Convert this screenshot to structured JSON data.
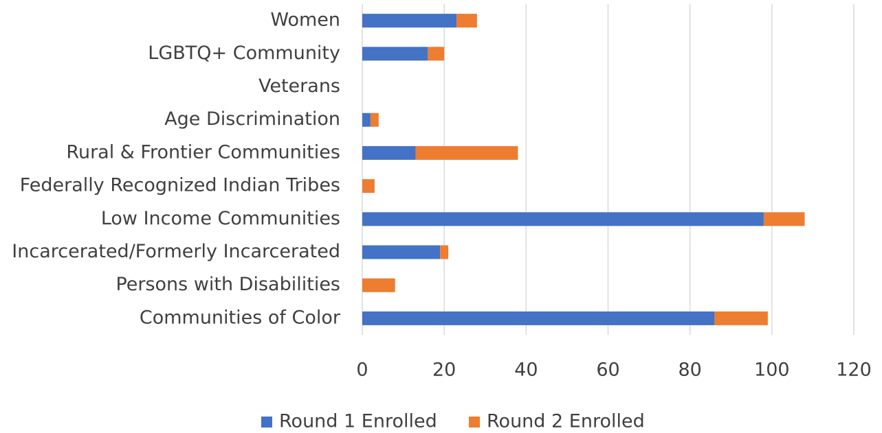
{
  "chart_data": {
    "type": "stacked_barh",
    "categories": [
      "Women",
      "LGBTQ+ Community",
      "Veterans",
      "Age Discrimination",
      "Rural & Frontier Communities",
      "Federally Recognized Indian Tribes",
      "Low Income Communities",
      "Incarcerated/Formerly Incarcerated",
      "Persons with Disabilities",
      "Communities of Color"
    ],
    "series": [
      {
        "name": "Round 1 Enrolled",
        "color": "#4472c4",
        "values": [
          23,
          16,
          0,
          2,
          13,
          0,
          98,
          19,
          0,
          86
        ]
      },
      {
        "name": "Round 2 Enrolled",
        "color": "#ed7d31",
        "values": [
          5,
          4,
          0,
          2,
          25,
          3,
          10,
          2,
          8,
          13
        ]
      }
    ],
    "xlim": [
      0,
      120
    ],
    "xticks": [
      0,
      20,
      40,
      60,
      80,
      100,
      120
    ],
    "grid": true,
    "legend": "bottom"
  }
}
